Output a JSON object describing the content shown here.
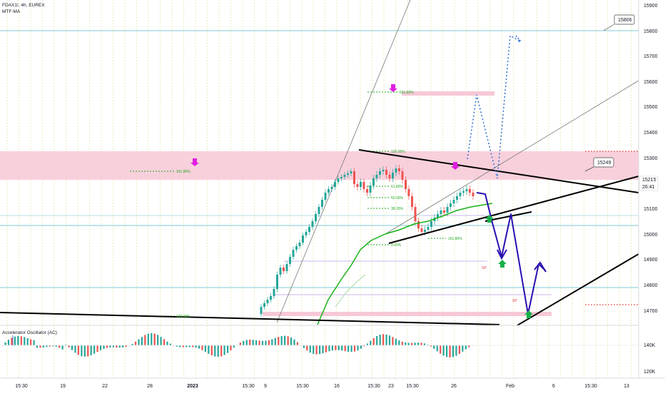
{
  "header": {
    "symbol": "FDAX1!, 4h, EUREX",
    "indicator": "MTF-MA"
  },
  "oscillator": {
    "label": "Accelerator Oscillator (AC)"
  },
  "price_axis": {
    "ticks": [
      "15900",
      "15800",
      "15700",
      "15600",
      "15500",
      "15400",
      "15300",
      "15200",
      "15100",
      "15000",
      "14900",
      "14800",
      "14700"
    ],
    "current_price": "15215",
    "countdown": "26:41",
    "marker_15806": "15806",
    "marker_15249": "15249"
  },
  "osc_axis": {
    "ticks": [
      "140K",
      "120K"
    ]
  },
  "time_axis": {
    "ticks": [
      "15:30",
      "19",
      "22",
      "28",
      "2023",
      "15:30",
      "9",
      "15:30",
      "16",
      "15:30",
      "23",
      "15:30",
      "26",
      "Feb",
      "6",
      "15:30",
      "13"
    ]
  },
  "fib_labels": {
    "f1618_top": "161.80%",
    "f1618_left": "161.80%",
    "f100": "100.00%",
    "f618": "61.80%",
    "f50": "50.00%",
    "f382": "38.20%",
    "f0": "0.00%",
    "f0b": "100.00%",
    "f0c": "161.80%",
    "bottom": "100.00%"
  },
  "notes": {
    "sp1": "SP",
    "sp2": "SP"
  },
  "colors": {
    "zone": "#f7c8d6",
    "fib": "#22aa22",
    "trendline": "#000000",
    "projection": "#2a0fb0",
    "dotted_projection": "#2e6fd6",
    "arrow_down": "#e01ee0",
    "arrow_up": "#18b04a",
    "ma": "#19b319",
    "hline": "#7ecbd6"
  }
}
